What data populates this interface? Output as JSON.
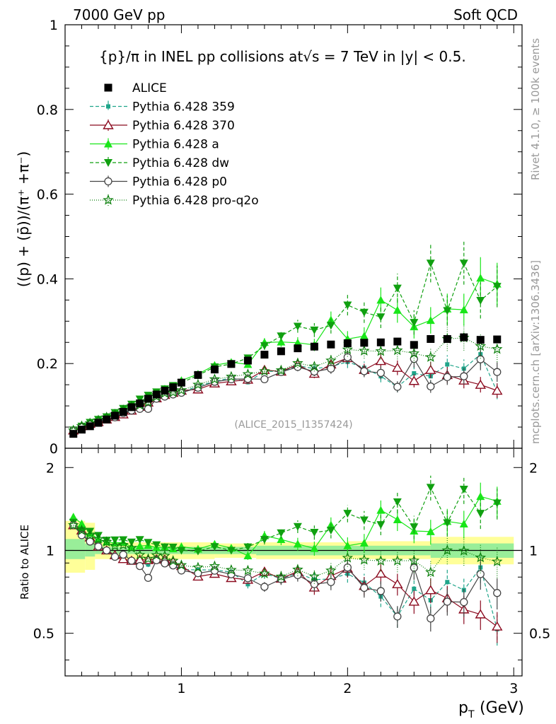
{
  "header": {
    "left": "7000 GeV pp",
    "right": "Soft QCD"
  },
  "main_panel": {
    "title": "{p}/π in INEL pp collisions at√s =  7 TeV in |y| < 0.5.",
    "ylabel": "((p) + (p̄))/(π⁺ +π⁻)",
    "watermark": "(ALICE_2015_I1357424)",
    "ylim": [
      0,
      1
    ],
    "y_ticks": [
      "0",
      "0.2",
      "0.4",
      "0.6",
      "0.8",
      "1"
    ]
  },
  "ratio_panel": {
    "ylabel": "Ratio to ALICE",
    "y_ticks": [
      "0.5",
      "1",
      "2"
    ]
  },
  "x_axis": {
    "label": "p",
    "label_sub": "T",
    "label_unit": "(GeV)",
    "ticks": [
      "1",
      "2",
      "3"
    ],
    "xlim": [
      0.3,
      3.05
    ]
  },
  "sidebar": {
    "rivet": "Rivet 4.1.0, ≥ 100k events",
    "mcplots": "mcplots.cern.ch [arXiv:1306.3436]"
  },
  "colors": {
    "alice": "#000000",
    "p359": "#1fa58a",
    "p370": "#8b0a1f",
    "pa": "#19e619",
    "pdw": "#10a010",
    "pp0": "#444444",
    "pq2o": "#0b7f0b",
    "band_yellow": "#ffff99",
    "band_green": "#99ee99"
  },
  "chart_data": {
    "type": "scatter",
    "x": [
      0.35,
      0.4,
      0.45,
      0.5,
      0.55,
      0.6,
      0.65,
      0.7,
      0.75,
      0.8,
      0.85,
      0.9,
      0.95,
      1.0,
      1.1,
      1.2,
      1.3,
      1.4,
      1.5,
      1.6,
      1.7,
      1.8,
      1.9,
      2.0,
      2.1,
      2.2,
      2.3,
      2.4,
      2.5,
      2.6,
      2.7,
      2.8,
      2.9
    ],
    "series": [
      {
        "name": "ALICE",
        "key": "alice",
        "marker": "square",
        "values": [
          0.034,
          0.044,
          0.052,
          0.06,
          0.068,
          0.077,
          0.086,
          0.097,
          0.106,
          0.117,
          0.127,
          0.136,
          0.144,
          0.155,
          0.173,
          0.186,
          0.199,
          0.207,
          0.221,
          0.229,
          0.236,
          0.24,
          0.245,
          0.248,
          0.249,
          0.25,
          0.252,
          0.244,
          0.258,
          0.258,
          0.262,
          0.256,
          0.257
        ]
      },
      {
        "name": "Pythia 6.428 359",
        "key": "p359",
        "marker": "small-square",
        "dash": "5,3",
        "values": [
          0.042,
          0.05,
          0.057,
          0.063,
          0.068,
          0.074,
          0.084,
          0.09,
          0.095,
          0.104,
          0.118,
          0.121,
          0.128,
          0.132,
          0.147,
          0.158,
          0.166,
          0.156,
          0.182,
          0.181,
          0.195,
          0.188,
          0.193,
          0.204,
          0.19,
          0.17,
          0.145,
          0.177,
          0.17,
          0.198,
          0.188,
          0.222,
          0.133
        ]
      },
      {
        "name": "Pythia 6.428 370",
        "key": "p370",
        "marker": "open-triangle",
        "values": [
          0.042,
          0.052,
          0.058,
          0.062,
          0.068,
          0.074,
          0.08,
          0.089,
          0.098,
          0.108,
          0.118,
          0.126,
          0.131,
          0.136,
          0.139,
          0.153,
          0.158,
          0.162,
          0.185,
          0.181,
          0.198,
          0.176,
          0.198,
          0.213,
          0.185,
          0.206,
          0.19,
          0.159,
          0.185,
          0.173,
          0.16,
          0.15,
          0.136
        ]
      },
      {
        "name": "Pythia 6.428 a",
        "key": "pa",
        "marker": "triangle",
        "values": [
          0.045,
          0.055,
          0.06,
          0.066,
          0.073,
          0.082,
          0.092,
          0.1,
          0.11,
          0.122,
          0.13,
          0.14,
          0.146,
          0.16,
          0.175,
          0.196,
          0.203,
          0.198,
          0.25,
          0.251,
          0.249,
          0.244,
          0.303,
          0.258,
          0.265,
          0.35,
          0.326,
          0.287,
          0.302,
          0.329,
          0.327,
          0.402,
          0.388
        ]
      },
      {
        "name": "Pythia 6.428 dw",
        "key": "pdw",
        "marker": "down-triangle",
        "dash": "5,3",
        "values": [
          0.043,
          0.052,
          0.061,
          0.068,
          0.074,
          0.084,
          0.094,
          0.104,
          0.116,
          0.125,
          0.133,
          0.14,
          0.148,
          0.155,
          0.172,
          0.192,
          0.199,
          0.213,
          0.242,
          0.265,
          0.288,
          0.279,
          0.29,
          0.338,
          0.321,
          0.31,
          0.378,
          0.297,
          0.437,
          0.325,
          0.437,
          0.349,
          0.382
        ]
      },
      {
        "name": "Pythia 6.428 p0",
        "key": "pp0",
        "marker": "open-circle",
        "values": [
          0.042,
          0.05,
          0.056,
          0.062,
          0.068,
          0.073,
          0.083,
          0.089,
          0.093,
          0.093,
          0.117,
          0.122,
          0.127,
          0.131,
          0.143,
          0.157,
          0.163,
          0.164,
          0.163,
          0.18,
          0.192,
          0.181,
          0.188,
          0.215,
          0.182,
          0.178,
          0.145,
          0.211,
          0.146,
          0.168,
          0.17,
          0.21,
          0.18
        ]
      },
      {
        "name": "Pythia 6.428 pro-q2o",
        "key": "pq2o",
        "marker": "open-star",
        "dash": "1,2",
        "values": [
          0.042,
          0.052,
          0.059,
          0.066,
          0.073,
          0.08,
          0.09,
          0.099,
          0.102,
          0.109,
          0.122,
          0.13,
          0.132,
          0.137,
          0.15,
          0.163,
          0.169,
          0.175,
          0.182,
          0.184,
          0.201,
          0.193,
          0.207,
          0.233,
          0.23,
          0.229,
          0.231,
          0.224,
          0.215,
          0.258,
          0.261,
          0.241,
          0.234
        ]
      }
    ],
    "ratio_bands": {
      "yellow": [
        [
          0.3,
          0.83,
          1.28
        ],
        [
          0.42,
          0.85,
          1.26
        ],
        [
          0.48,
          0.93,
          1.07
        ],
        [
          1.2,
          0.94,
          1.06
        ],
        [
          1.45,
          0.93,
          1.07
        ],
        [
          2.0,
          0.93,
          1.08
        ],
        [
          2.5,
          0.89,
          1.12
        ],
        [
          3.0,
          0.88,
          1.13
        ]
      ],
      "green": [
        [
          0.3,
          0.93,
          1.1
        ],
        [
          0.42,
          0.95,
          1.06
        ],
        [
          0.48,
          0.97,
          1.03
        ],
        [
          1.45,
          0.96,
          1.04
        ],
        [
          2.5,
          0.94,
          1.06
        ],
        [
          3.0,
          0.93,
          1.07
        ]
      ]
    }
  }
}
